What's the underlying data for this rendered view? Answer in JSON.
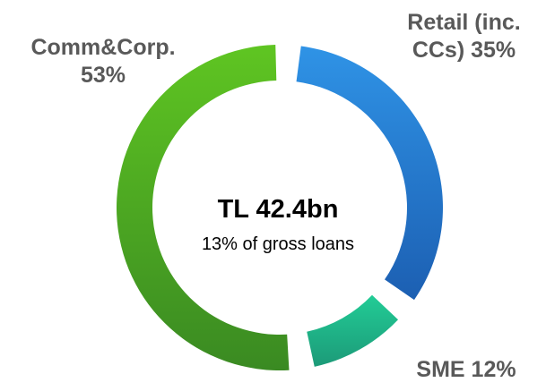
{
  "chart_data": {
    "type": "donut",
    "categories": [
      "Retail (inc. CCs)",
      "SME",
      "Comm&Corp."
    ],
    "values": [
      35,
      12,
      53
    ],
    "value_labels": [
      "35%",
      "12%",
      "53%"
    ],
    "colors": [
      "#2a86dc",
      "#1fc08e",
      "#55b826"
    ],
    "annotations": [
      "TL 42.4bn",
      "13% of gross loans"
    ]
  }
}
